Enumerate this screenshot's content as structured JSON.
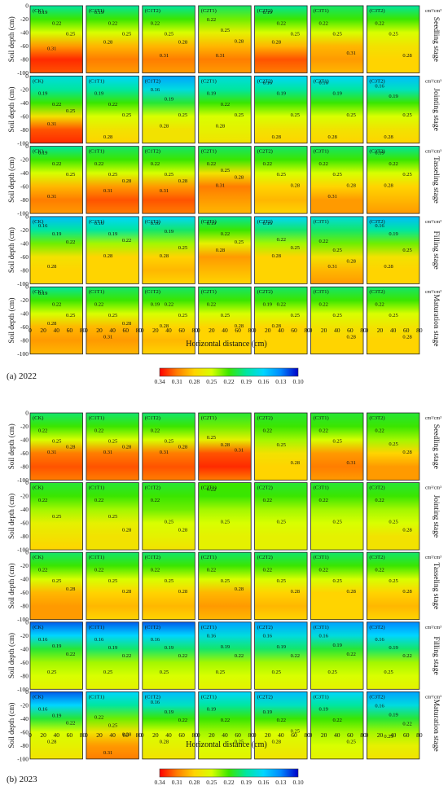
{
  "chart_data": [
    {
      "type": "heatmap",
      "caption": "(a) 2022",
      "x_label": "Horizontal distance (cm)",
      "y_label": "Soil depth (cm)",
      "unit": "cm³/cm³",
      "x_ticks": [
        0,
        20,
        40,
        60,
        80
      ],
      "y_ticks": [
        -100,
        -80,
        -60,
        -40,
        -20,
        0
      ],
      "xlim": [
        0,
        80
      ],
      "ylim": [
        -100,
        0
      ],
      "treatments": [
        "CK",
        "C1T1",
        "C1T2",
        "C2T1",
        "C2T2",
        "C3T1",
        "C3T2"
      ],
      "stages": [
        "Seedling stage",
        "Jointing stage",
        "Tasseling stage",
        "Filling stage",
        "Maturation stage"
      ],
      "colorbar": {
        "ticks": [
          0.34,
          0.31,
          0.28,
          0.25,
          0.22,
          0.19,
          0.16,
          0.13,
          0.1
        ],
        "colors": [
          "#ff0000",
          "#ff7d00",
          "#ffd400",
          "#d8ff00",
          "#3ae600",
          "#00e6a0",
          "#00d6ff",
          "#0088ff",
          "#0000c8"
        ]
      },
      "moisture_profiles": [
        [
          [
            0.19,
            0.22,
            0.25,
            0.3,
            0.33,
            0.32
          ],
          [
            0.19,
            0.22,
            0.25,
            0.29,
            0.31,
            0.3
          ],
          [
            0.19,
            0.22,
            0.25,
            0.29,
            0.31,
            0.3
          ],
          [
            0.2,
            0.23,
            0.26,
            0.29,
            0.31,
            0.3
          ],
          [
            0.19,
            0.22,
            0.25,
            0.29,
            0.32,
            0.31
          ],
          [
            0.2,
            0.22,
            0.25,
            0.29,
            0.3,
            0.29
          ],
          [
            0.19,
            0.22,
            0.25,
            0.27,
            0.28,
            0.28
          ]
        ],
        [
          [
            0.17,
            0.19,
            0.22,
            0.27,
            0.32,
            0.33
          ],
          [
            0.16,
            0.19,
            0.22,
            0.25,
            0.27,
            0.28
          ],
          [
            0.14,
            0.17,
            0.21,
            0.25,
            0.27,
            0.27
          ],
          [
            0.17,
            0.19,
            0.22,
            0.25,
            0.26,
            0.27
          ],
          [
            0.16,
            0.19,
            0.22,
            0.25,
            0.27,
            0.28
          ],
          [
            0.16,
            0.19,
            0.22,
            0.25,
            0.27,
            0.28
          ],
          [
            0.15,
            0.18,
            0.22,
            0.25,
            0.27,
            0.28
          ]
        ],
        [
          [
            0.19,
            0.22,
            0.25,
            0.29,
            0.31,
            0.3
          ],
          [
            0.2,
            0.22,
            0.25,
            0.3,
            0.32,
            0.31
          ],
          [
            0.2,
            0.22,
            0.25,
            0.3,
            0.32,
            0.31
          ],
          [
            0.2,
            0.22,
            0.27,
            0.31,
            0.3,
            0.29
          ],
          [
            0.2,
            0.22,
            0.25,
            0.28,
            0.29,
            0.28
          ],
          [
            0.2,
            0.22,
            0.25,
            0.28,
            0.3,
            0.3
          ],
          [
            0.19,
            0.22,
            0.25,
            0.28,
            0.29,
            0.3
          ]
        ],
        [
          [
            0.15,
            0.19,
            0.23,
            0.27,
            0.28,
            0.28
          ],
          [
            0.16,
            0.19,
            0.24,
            0.28,
            0.28,
            0.28
          ],
          [
            0.16,
            0.2,
            0.24,
            0.28,
            0.29,
            0.28
          ],
          [
            0.19,
            0.22,
            0.26,
            0.3,
            0.29,
            0.28
          ],
          [
            0.16,
            0.2,
            0.24,
            0.28,
            0.28,
            0.28
          ],
          [
            0.17,
            0.2,
            0.23,
            0.27,
            0.29,
            0.3
          ],
          [
            0.15,
            0.19,
            0.23,
            0.27,
            0.28,
            0.28
          ]
        ],
        [
          [
            0.19,
            0.22,
            0.25,
            0.29,
            0.3,
            0.29
          ],
          [
            0.2,
            0.22,
            0.25,
            0.29,
            0.3,
            0.29
          ],
          [
            0.2,
            0.22,
            0.25,
            0.28,
            0.29,
            0.28
          ],
          [
            0.2,
            0.22,
            0.25,
            0.28,
            0.28,
            0.28
          ],
          [
            0.2,
            0.22,
            0.25,
            0.28,
            0.28,
            0.28
          ],
          [
            0.2,
            0.22,
            0.25,
            0.27,
            0.28,
            0.28
          ],
          [
            0.2,
            0.22,
            0.25,
            0.27,
            0.28,
            0.28
          ]
        ]
      ],
      "contour_labels": [
        [
          [
            "0.19",
            "0.22",
            "0.25",
            "0.31"
          ],
          [
            "0.19",
            "0.22",
            "0.25",
            "0.28"
          ],
          [
            "0.22",
            "0.25",
            "0.28",
            "0.31"
          ],
          [
            "0.22",
            "0.25",
            "0.28",
            "0.31"
          ],
          [
            "0.19",
            "0.22",
            "0.25",
            "0.28"
          ],
          [
            "0.22",
            "0.25",
            "0.31"
          ],
          [
            "0.22",
            "0.25",
            "0.28"
          ]
        ],
        [
          [
            "0.19",
            "0.22",
            "0.25",
            "0.31"
          ],
          [
            "0.19",
            "0.22",
            "0.25",
            "0.28"
          ],
          [
            "0.16",
            "0.19",
            "0.25",
            "0.28"
          ],
          [
            "0.19",
            "0.22",
            "0.25",
            "0.28"
          ],
          [
            "0.16",
            "0.19",
            "0.25",
            "0.28"
          ],
          [
            "0.16",
            "0.19",
            "0.25",
            "0.28"
          ],
          [
            "0.16",
            "0.19",
            "0.25",
            "0.28"
          ]
        ],
        [
          [
            "0.19",
            "0.22",
            "0.25",
            "0.31"
          ],
          [
            "0.22",
            "0.25",
            "0.28",
            "0.31"
          ],
          [
            "0.22",
            "0.25",
            "0.28",
            "0.31"
          ],
          [
            "0.22",
            "0.25",
            "0.28",
            "0.31"
          ],
          [
            "0.22",
            "0.25",
            "0.28"
          ],
          [
            "0.22",
            "0.25",
            "0.28",
            "0.31"
          ],
          [
            "0.19",
            "0.22",
            "0.25",
            "0.28"
          ]
        ],
        [
          [
            "0.16",
            "0.19",
            "0.22",
            "0.28"
          ],
          [
            "0.16",
            "0.19",
            "0.22",
            "0.28"
          ],
          [
            "0.16",
            "0.19",
            "0.25",
            "0.28"
          ],
          [
            "0.19",
            "0.22",
            "0.25",
            "0.28"
          ],
          [
            "0.16",
            "0.22",
            "0.25",
            "0.28"
          ],
          [
            "0.22",
            "0.25",
            "0.28",
            "0.31"
          ],
          [
            "0.16",
            "0.19",
            "0.25",
            "0.28"
          ]
        ],
        [
          [
            "0.19",
            "0.22",
            "0.25",
            "0.28"
          ],
          [
            "0.22",
            "0.25",
            "0.28",
            "0.31"
          ],
          [
            "0.19",
            "0.22",
            "0.25",
            "0.28"
          ],
          [
            "0.22",
            "0.25",
            "0.28"
          ],
          [
            "0.19",
            "0.22",
            "0.25",
            "0.28"
          ],
          [
            "0.22",
            "0.25",
            "0.28"
          ],
          [
            "0.22",
            "0.25",
            "0.28"
          ]
        ]
      ]
    },
    {
      "type": "heatmap",
      "caption": "(b) 2023",
      "x_label": "Horizontal distance (cm)",
      "y_label": "Soil depth (cm)",
      "unit": "cm³/cm³",
      "x_ticks": [
        0,
        20,
        40,
        60,
        80
      ],
      "y_ticks": [
        -100,
        -80,
        -60,
        -40,
        -20,
        0
      ],
      "xlim": [
        0,
        80
      ],
      "ylim": [
        -100,
        0
      ],
      "treatments": [
        "CK",
        "C1T1",
        "C1T2",
        "C2T1",
        "C2T2",
        "C3T1",
        "C3T2"
      ],
      "stages": [
        "Seedling stage",
        "Jointing stage",
        "Tasseling stage",
        "Filling stage",
        "Maturation stage"
      ],
      "colorbar": {
        "ticks": [
          0.34,
          0.31,
          0.28,
          0.25,
          0.22,
          0.19,
          0.16,
          0.13,
          0.1
        ],
        "colors": [
          "#ff0000",
          "#ff7d00",
          "#ffd400",
          "#d8ff00",
          "#3ae600",
          "#00e6a0",
          "#00d6ff",
          "#0088ff",
          "#0000c8"
        ]
      },
      "moisture_profiles": [
        [
          [
            0.2,
            0.22,
            0.25,
            0.31,
            0.32,
            0.31
          ],
          [
            0.2,
            0.22,
            0.25,
            0.31,
            0.32,
            0.31
          ],
          [
            0.2,
            0.22,
            0.25,
            0.31,
            0.32,
            0.31
          ],
          [
            0.21,
            0.23,
            0.26,
            0.32,
            0.33,
            0.31
          ],
          [
            0.21,
            0.22,
            0.24,
            0.27,
            0.28,
            0.28
          ],
          [
            0.21,
            0.22,
            0.25,
            0.3,
            0.31,
            0.3
          ],
          [
            0.21,
            0.22,
            0.24,
            0.28,
            0.3,
            0.3
          ]
        ],
        [
          [
            0.21,
            0.22,
            0.24,
            0.26,
            0.27,
            0.28
          ],
          [
            0.21,
            0.22,
            0.24,
            0.26,
            0.27,
            0.27
          ],
          [
            0.21,
            0.22,
            0.23,
            0.25,
            0.26,
            0.27
          ],
          [
            0.22,
            0.22,
            0.24,
            0.25,
            0.26,
            0.26
          ],
          [
            0.21,
            0.22,
            0.24,
            0.25,
            0.26,
            0.26
          ],
          [
            0.21,
            0.22,
            0.24,
            0.25,
            0.26,
            0.26
          ],
          [
            0.21,
            0.22,
            0.24,
            0.25,
            0.27,
            0.27
          ]
        ],
        [
          [
            0.2,
            0.22,
            0.25,
            0.29,
            0.3,
            0.3
          ],
          [
            0.2,
            0.22,
            0.25,
            0.28,
            0.29,
            0.28
          ],
          [
            0.2,
            0.22,
            0.25,
            0.28,
            0.29,
            0.28
          ],
          [
            0.2,
            0.22,
            0.25,
            0.29,
            0.3,
            0.29
          ],
          [
            0.2,
            0.22,
            0.25,
            0.28,
            0.29,
            0.28
          ],
          [
            0.2,
            0.22,
            0.25,
            0.28,
            0.28,
            0.28
          ],
          [
            0.2,
            0.22,
            0.25,
            0.28,
            0.29,
            0.28
          ]
        ],
        [
          [
            0.12,
            0.16,
            0.21,
            0.24,
            0.25,
            0.26
          ],
          [
            0.12,
            0.16,
            0.2,
            0.24,
            0.25,
            0.26
          ],
          [
            0.12,
            0.16,
            0.2,
            0.24,
            0.25,
            0.26
          ],
          [
            0.14,
            0.17,
            0.2,
            0.24,
            0.25,
            0.26
          ],
          [
            0.14,
            0.17,
            0.2,
            0.24,
            0.25,
            0.26
          ],
          [
            0.14,
            0.17,
            0.21,
            0.24,
            0.25,
            0.26
          ],
          [
            0.13,
            0.16,
            0.2,
            0.24,
            0.25,
            0.26
          ]
        ],
        [
          [
            0.12,
            0.16,
            0.21,
            0.25,
            0.26,
            0.27
          ],
          [
            0.16,
            0.19,
            0.23,
            0.27,
            0.3,
            0.31
          ],
          [
            0.15,
            0.18,
            0.22,
            0.25,
            0.26,
            0.27
          ],
          [
            0.16,
            0.19,
            0.22,
            0.24,
            0.25,
            0.26
          ],
          [
            0.15,
            0.18,
            0.22,
            0.25,
            0.26,
            0.27
          ],
          [
            0.16,
            0.19,
            0.22,
            0.24,
            0.25,
            0.26
          ],
          [
            0.14,
            0.17,
            0.21,
            0.24,
            0.26,
            0.27
          ]
        ]
      ],
      "contour_labels": [
        [
          [
            "0.22",
            "0.25",
            "0.28",
            "0.31"
          ],
          [
            "0.22",
            "0.25",
            "0.28",
            "0.31"
          ],
          [
            "0.22",
            "0.25",
            "0.28",
            "0.31"
          ],
          [
            "0.25",
            "0.28",
            "0.31"
          ],
          [
            "0.22",
            "0.25",
            "0.28"
          ],
          [
            "0.22",
            "0.25",
            "0.31"
          ],
          [
            "0.22",
            "0.25",
            "0.28"
          ]
        ],
        [
          [
            "0.22",
            "0.25"
          ],
          [
            "0.22",
            "0.25",
            "0.28"
          ],
          [
            "0.22",
            "0.25",
            "0.28"
          ],
          [
            "0.22",
            "0.25"
          ],
          [
            "0.22",
            "0.25"
          ],
          [
            "0.22",
            "0.25"
          ],
          [
            "0.22",
            "0.25",
            "0.28"
          ]
        ],
        [
          [
            "0.22",
            "0.25",
            "0.28"
          ],
          [
            "0.22",
            "0.25",
            "0.28"
          ],
          [
            "0.22",
            "0.25",
            "0.28"
          ],
          [
            "0.22",
            "0.25",
            "0.28"
          ],
          [
            "0.22",
            "0.25",
            "0.28"
          ],
          [
            "0.22",
            "0.25",
            "0.28"
          ],
          [
            "0.22",
            "0.25",
            "0.28"
          ]
        ],
        [
          [
            "0.16",
            "0.19",
            "0.22",
            "0.25"
          ],
          [
            "0.16",
            "0.19",
            "0.22",
            "0.25"
          ],
          [
            "0.16",
            "0.19",
            "0.22",
            "0.25"
          ],
          [
            "0.16",
            "0.19",
            "0.22",
            "0.25"
          ],
          [
            "0.16",
            "0.19",
            "0.22",
            "0.25"
          ],
          [
            "0.16",
            "0.19",
            "0.22",
            "0.25"
          ],
          [
            "0.16",
            "0.19",
            "0.22",
            "0.25"
          ]
        ],
        [
          [
            "0.16",
            "0.19",
            "0.22",
            "0.28"
          ],
          [
            "0.22",
            "0.25",
            "0.28",
            "0.31"
          ],
          [
            "0.16",
            "0.19",
            "0.22",
            "0.28"
          ],
          [
            "0.19",
            "0.22",
            "0.25"
          ],
          [
            "0.19",
            "0.22",
            "0.25",
            "0.28"
          ],
          [
            "0.19",
            "0.22",
            "0.25"
          ],
          [
            "0.16",
            "0.19",
            "0.22",
            "0.25"
          ]
        ]
      ]
    }
  ]
}
